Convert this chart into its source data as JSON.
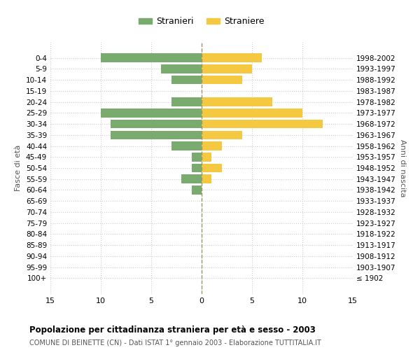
{
  "age_groups": [
    "100+",
    "95-99",
    "90-94",
    "85-89",
    "80-84",
    "75-79",
    "70-74",
    "65-69",
    "60-64",
    "55-59",
    "50-54",
    "45-49",
    "40-44",
    "35-39",
    "30-34",
    "25-29",
    "20-24",
    "15-19",
    "10-14",
    "5-9",
    "0-4"
  ],
  "birth_years": [
    "≤ 1902",
    "1903-1907",
    "1908-1912",
    "1913-1917",
    "1918-1922",
    "1923-1927",
    "1928-1932",
    "1933-1937",
    "1938-1942",
    "1943-1947",
    "1948-1952",
    "1953-1957",
    "1958-1962",
    "1963-1967",
    "1968-1972",
    "1973-1977",
    "1978-1982",
    "1983-1987",
    "1988-1992",
    "1993-1997",
    "1998-2002"
  ],
  "males": [
    0,
    0,
    0,
    0,
    0,
    0,
    0,
    0,
    1,
    2,
    1,
    1,
    3,
    9,
    9,
    10,
    3,
    0,
    3,
    4,
    10
  ],
  "females": [
    0,
    0,
    0,
    0,
    0,
    0,
    0,
    0,
    0,
    1,
    2,
    1,
    2,
    4,
    12,
    10,
    7,
    0,
    4,
    5,
    6
  ],
  "male_color": "#7aab6e",
  "female_color": "#f5c842",
  "center_line_color": "#999966",
  "grid_color": "#cccccc",
  "bg_color": "#ffffff",
  "title": "Popolazione per cittadinanza straniera per età e sesso - 2003",
  "subtitle": "COMUNE DI BEINETTE (CN) - Dati ISTAT 1° gennaio 2003 - Elaborazione TUTTITALIA.IT",
  "ylabel_left": "Fasce di età",
  "ylabel_right": "Anni di nascita",
  "legend_male": "Stranieri",
  "legend_female": "Straniere",
  "xlim": 15,
  "bar_height": 0.8
}
